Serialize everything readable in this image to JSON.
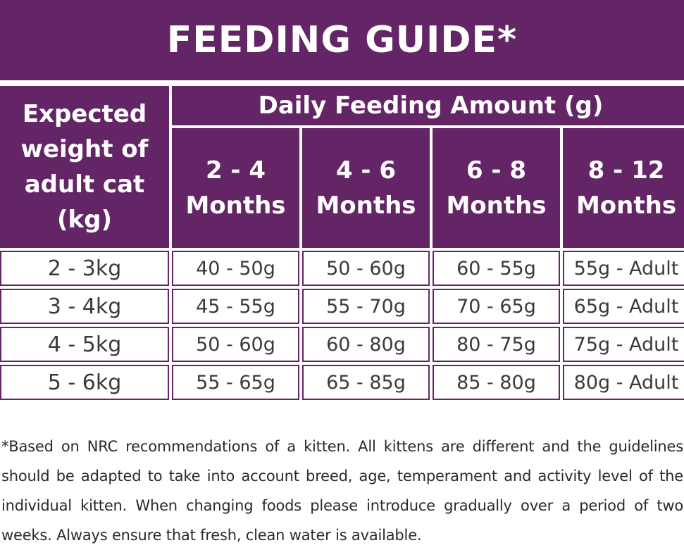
{
  "title": "FEEDING GUIDE*",
  "table": {
    "weight_header": "Expected weight of adult cat (kg)",
    "amount_header": "Daily Feeding Amount (g)",
    "age_headers": [
      "2 - 4 Months",
      "4 - 6 Months",
      "6 - 8 Months",
      "8 - 12 Months"
    ],
    "rows": [
      {
        "weight": "2 - 3kg",
        "amounts": [
          "40 - 50g",
          "50 - 60g",
          "60 - 55g",
          "55g - Adult"
        ]
      },
      {
        "weight": "3 - 4kg",
        "amounts": [
          "45 - 55g",
          "55 - 70g",
          "70 - 65g",
          "65g - Adult"
        ]
      },
      {
        "weight": "4 - 5kg",
        "amounts": [
          "50 - 60g",
          "60 - 80g",
          "80 - 75g",
          "75g - Adult"
        ]
      },
      {
        "weight": "5 - 6kg",
        "amounts": [
          "55 - 65g",
          "65 - 85g",
          "85 - 80g",
          "80g - Adult"
        ]
      }
    ]
  },
  "footnote": "*Based on NRC recommendations of a kitten. All kittens are different and the guidelines should be adapted to take into account breed, age, temperament and activity level of the individual kitten. When changing foods please introduce gradually over a period of two weeks. Always ensure that fresh, clean water is available.",
  "colors": {
    "header_bg": "#642566",
    "header_text": "#ffffff",
    "cell_text": "#3a3a3a"
  }
}
